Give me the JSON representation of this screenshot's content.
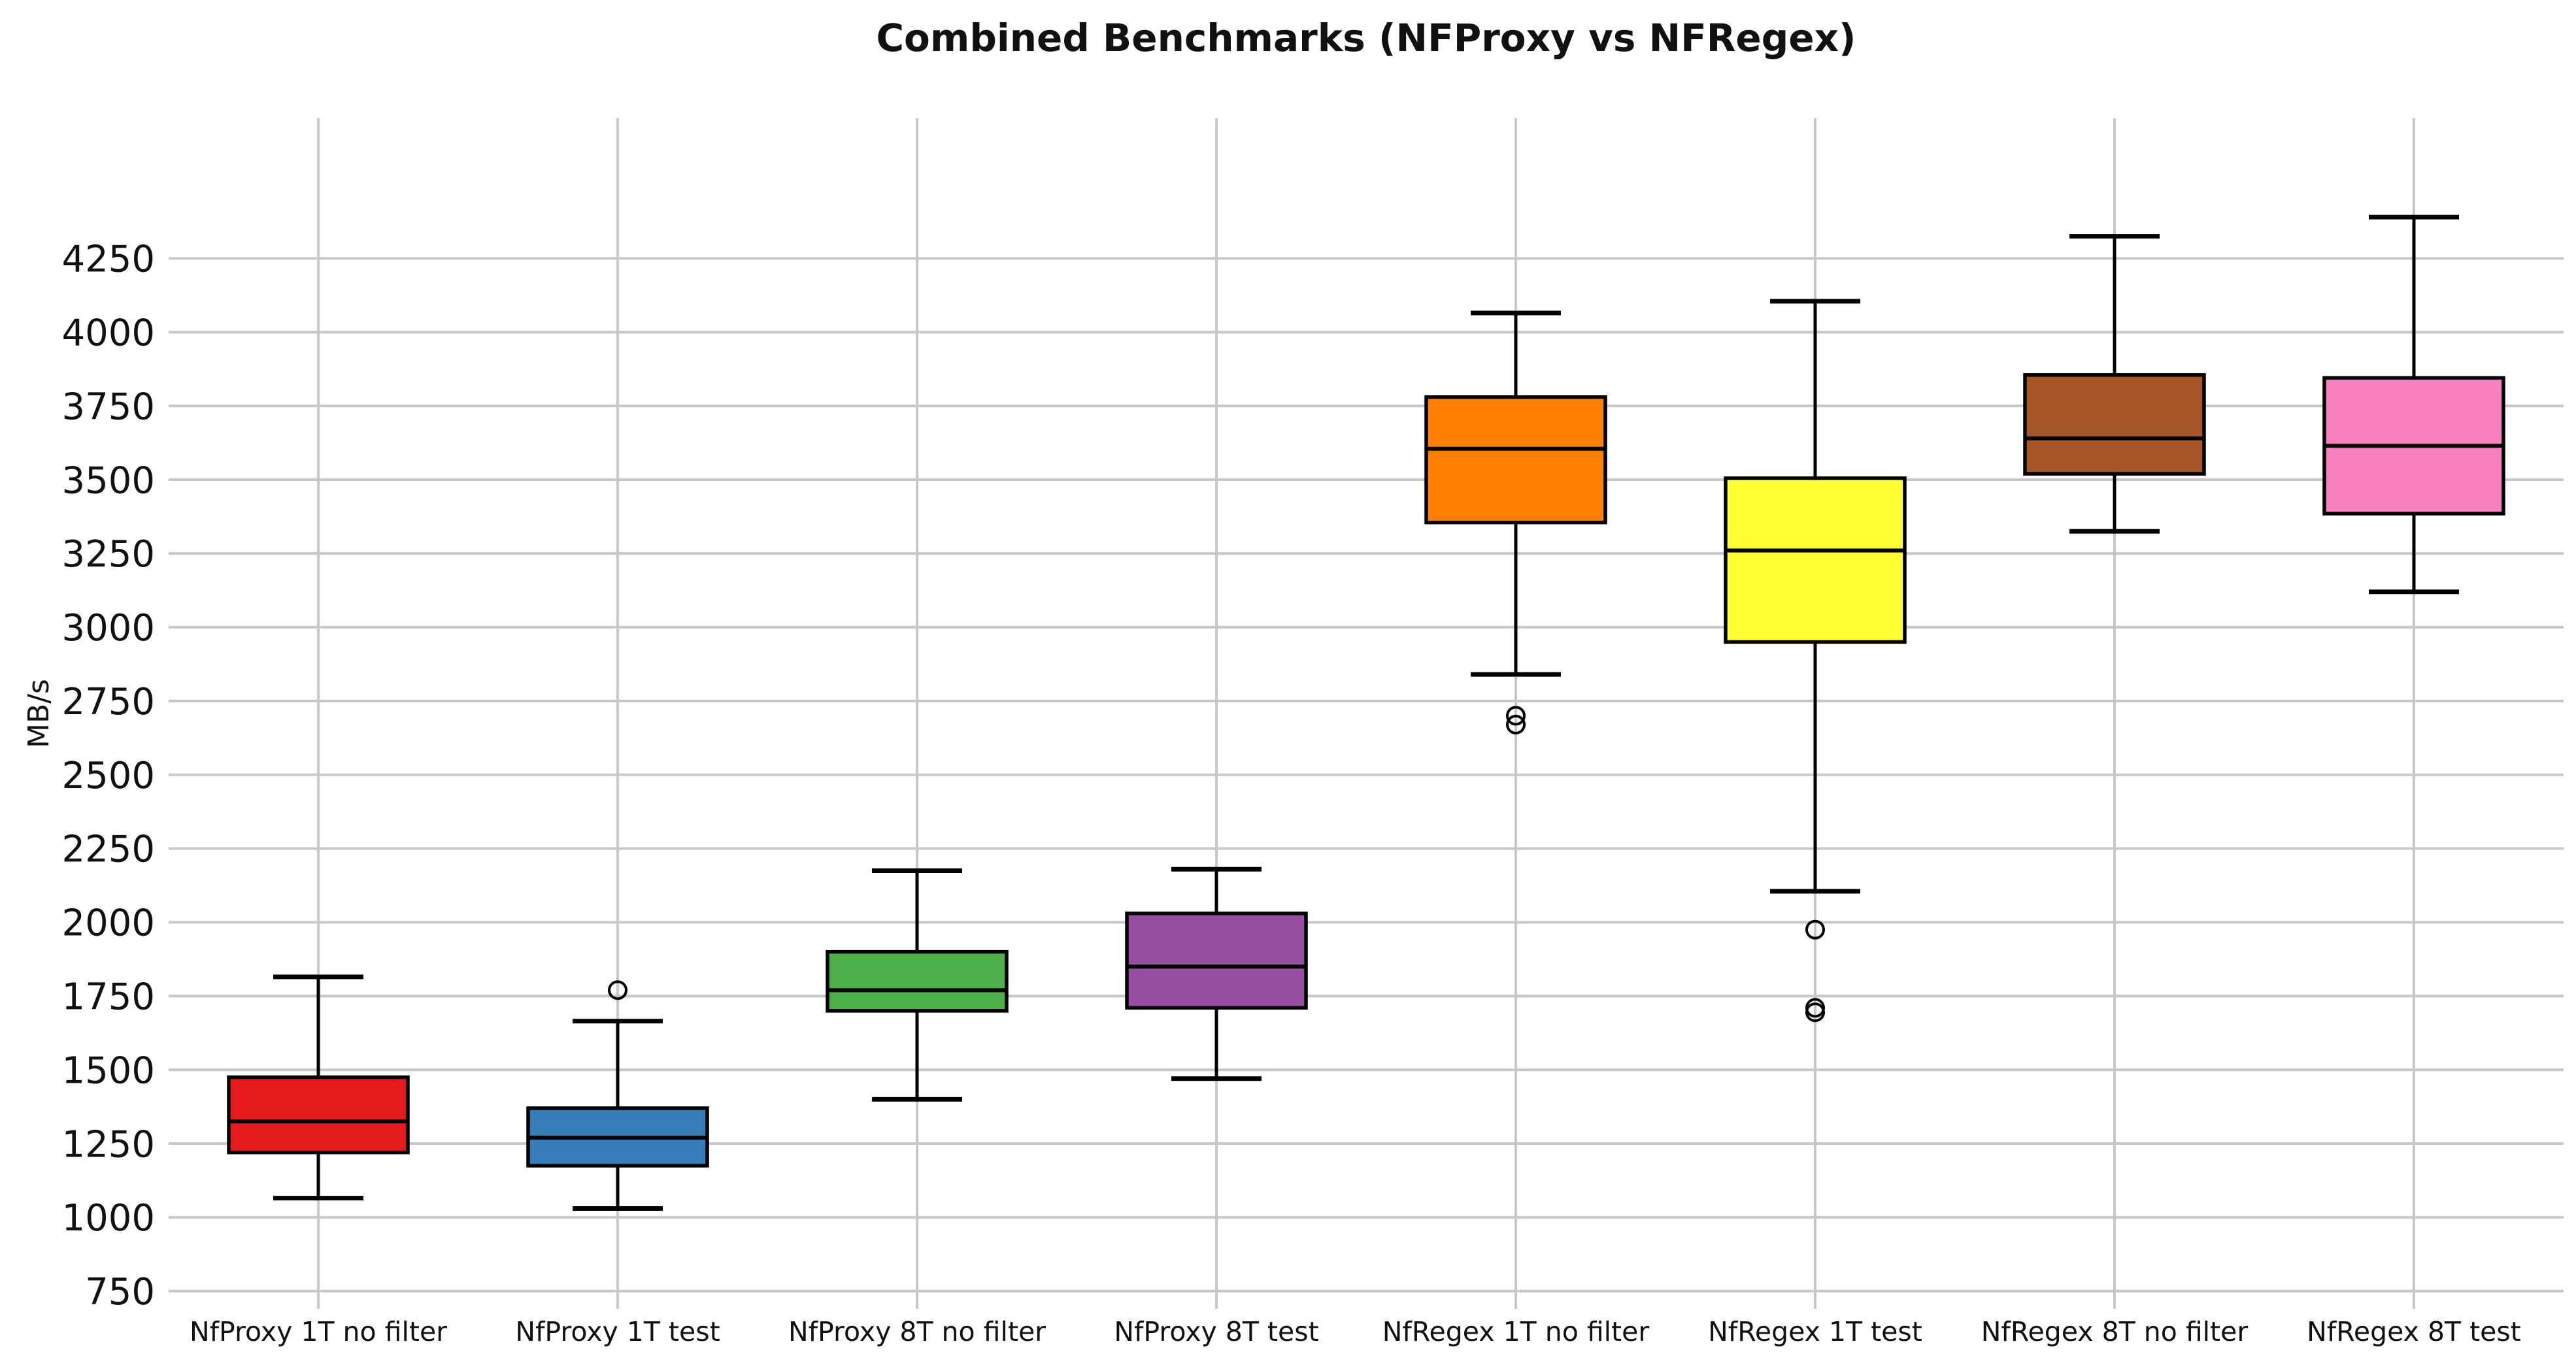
{
  "title": "Combined Benchmarks (NFProxy vs NFRegex)",
  "chart_data": {
    "type": "boxplot",
    "title": "Combined Benchmarks (NFProxy vs NFRegex)",
    "ylabel": "MB/s",
    "xlabel": "",
    "grid": true,
    "legend": false,
    "ylim": [
      690,
      4725
    ],
    "y_ticks": [
      750,
      1000,
      1250,
      1500,
      1750,
      2000,
      2250,
      2500,
      2750,
      3000,
      3250,
      3500,
      3750,
      4000,
      4250
    ],
    "categories": [
      "NfProxy 1T no filter",
      "NfProxy 1T test",
      "NfProxy 8T no filter",
      "NfProxy 8T test",
      "NfRegex 1T no filter",
      "NfRegex 1T test",
      "NfRegex 8T no filter",
      "NfRegex 8T test"
    ],
    "series": [
      {
        "label": "NfProxy 1T no filter",
        "color": "#e41a1c",
        "whisker_low": 1065,
        "q1": 1220,
        "median": 1325,
        "q3": 1475,
        "whisker_high": 1815,
        "outliers": []
      },
      {
        "label": "NfProxy 1T test",
        "color": "#377eb8",
        "whisker_low": 1030,
        "q1": 1175,
        "median": 1270,
        "q3": 1370,
        "whisker_high": 1665,
        "outliers": [
          1770
        ]
      },
      {
        "label": "NfProxy 8T no filter",
        "color": "#4daf4a",
        "whisker_low": 1400,
        "q1": 1700,
        "median": 1770,
        "q3": 1900,
        "whisker_high": 2175,
        "outliers": []
      },
      {
        "label": "NfProxy 8T test",
        "color": "#984ea3",
        "whisker_low": 1470,
        "q1": 1710,
        "median": 1850,
        "q3": 2030,
        "whisker_high": 2180,
        "outliers": []
      },
      {
        "label": "NfRegex 1T no filter",
        "color": "#ff7f00",
        "whisker_low": 2840,
        "q1": 3355,
        "median": 3605,
        "q3": 3780,
        "whisker_high": 4065,
        "outliers": [
          2700,
          2670
        ]
      },
      {
        "label": "NfRegex 1T test",
        "color": "#ffff33",
        "whisker_low": 2105,
        "q1": 2950,
        "median": 3260,
        "q3": 3505,
        "whisker_high": 4105,
        "outliers": [
          1975,
          1710,
          1695
        ]
      },
      {
        "label": "NfRegex 8T no filter",
        "color": "#a65628",
        "whisker_low": 3325,
        "q1": 3520,
        "median": 3640,
        "q3": 3855,
        "whisker_high": 4325,
        "outliers": []
      },
      {
        "label": "NfRegex 8T test",
        "color": "#f781bf",
        "whisker_low": 3120,
        "q1": 3385,
        "median": 3615,
        "q3": 3845,
        "whisker_high": 4390,
        "outliers": []
      }
    ],
    "style": {
      "background": "#ffffff",
      "grid_color": "#c8c8c8",
      "box_edge_color": "#000000",
      "median_color": "#000000",
      "whisker_color": "#000000",
      "outlier_edge_color": "#000000",
      "text_color": "#111111"
    }
  }
}
